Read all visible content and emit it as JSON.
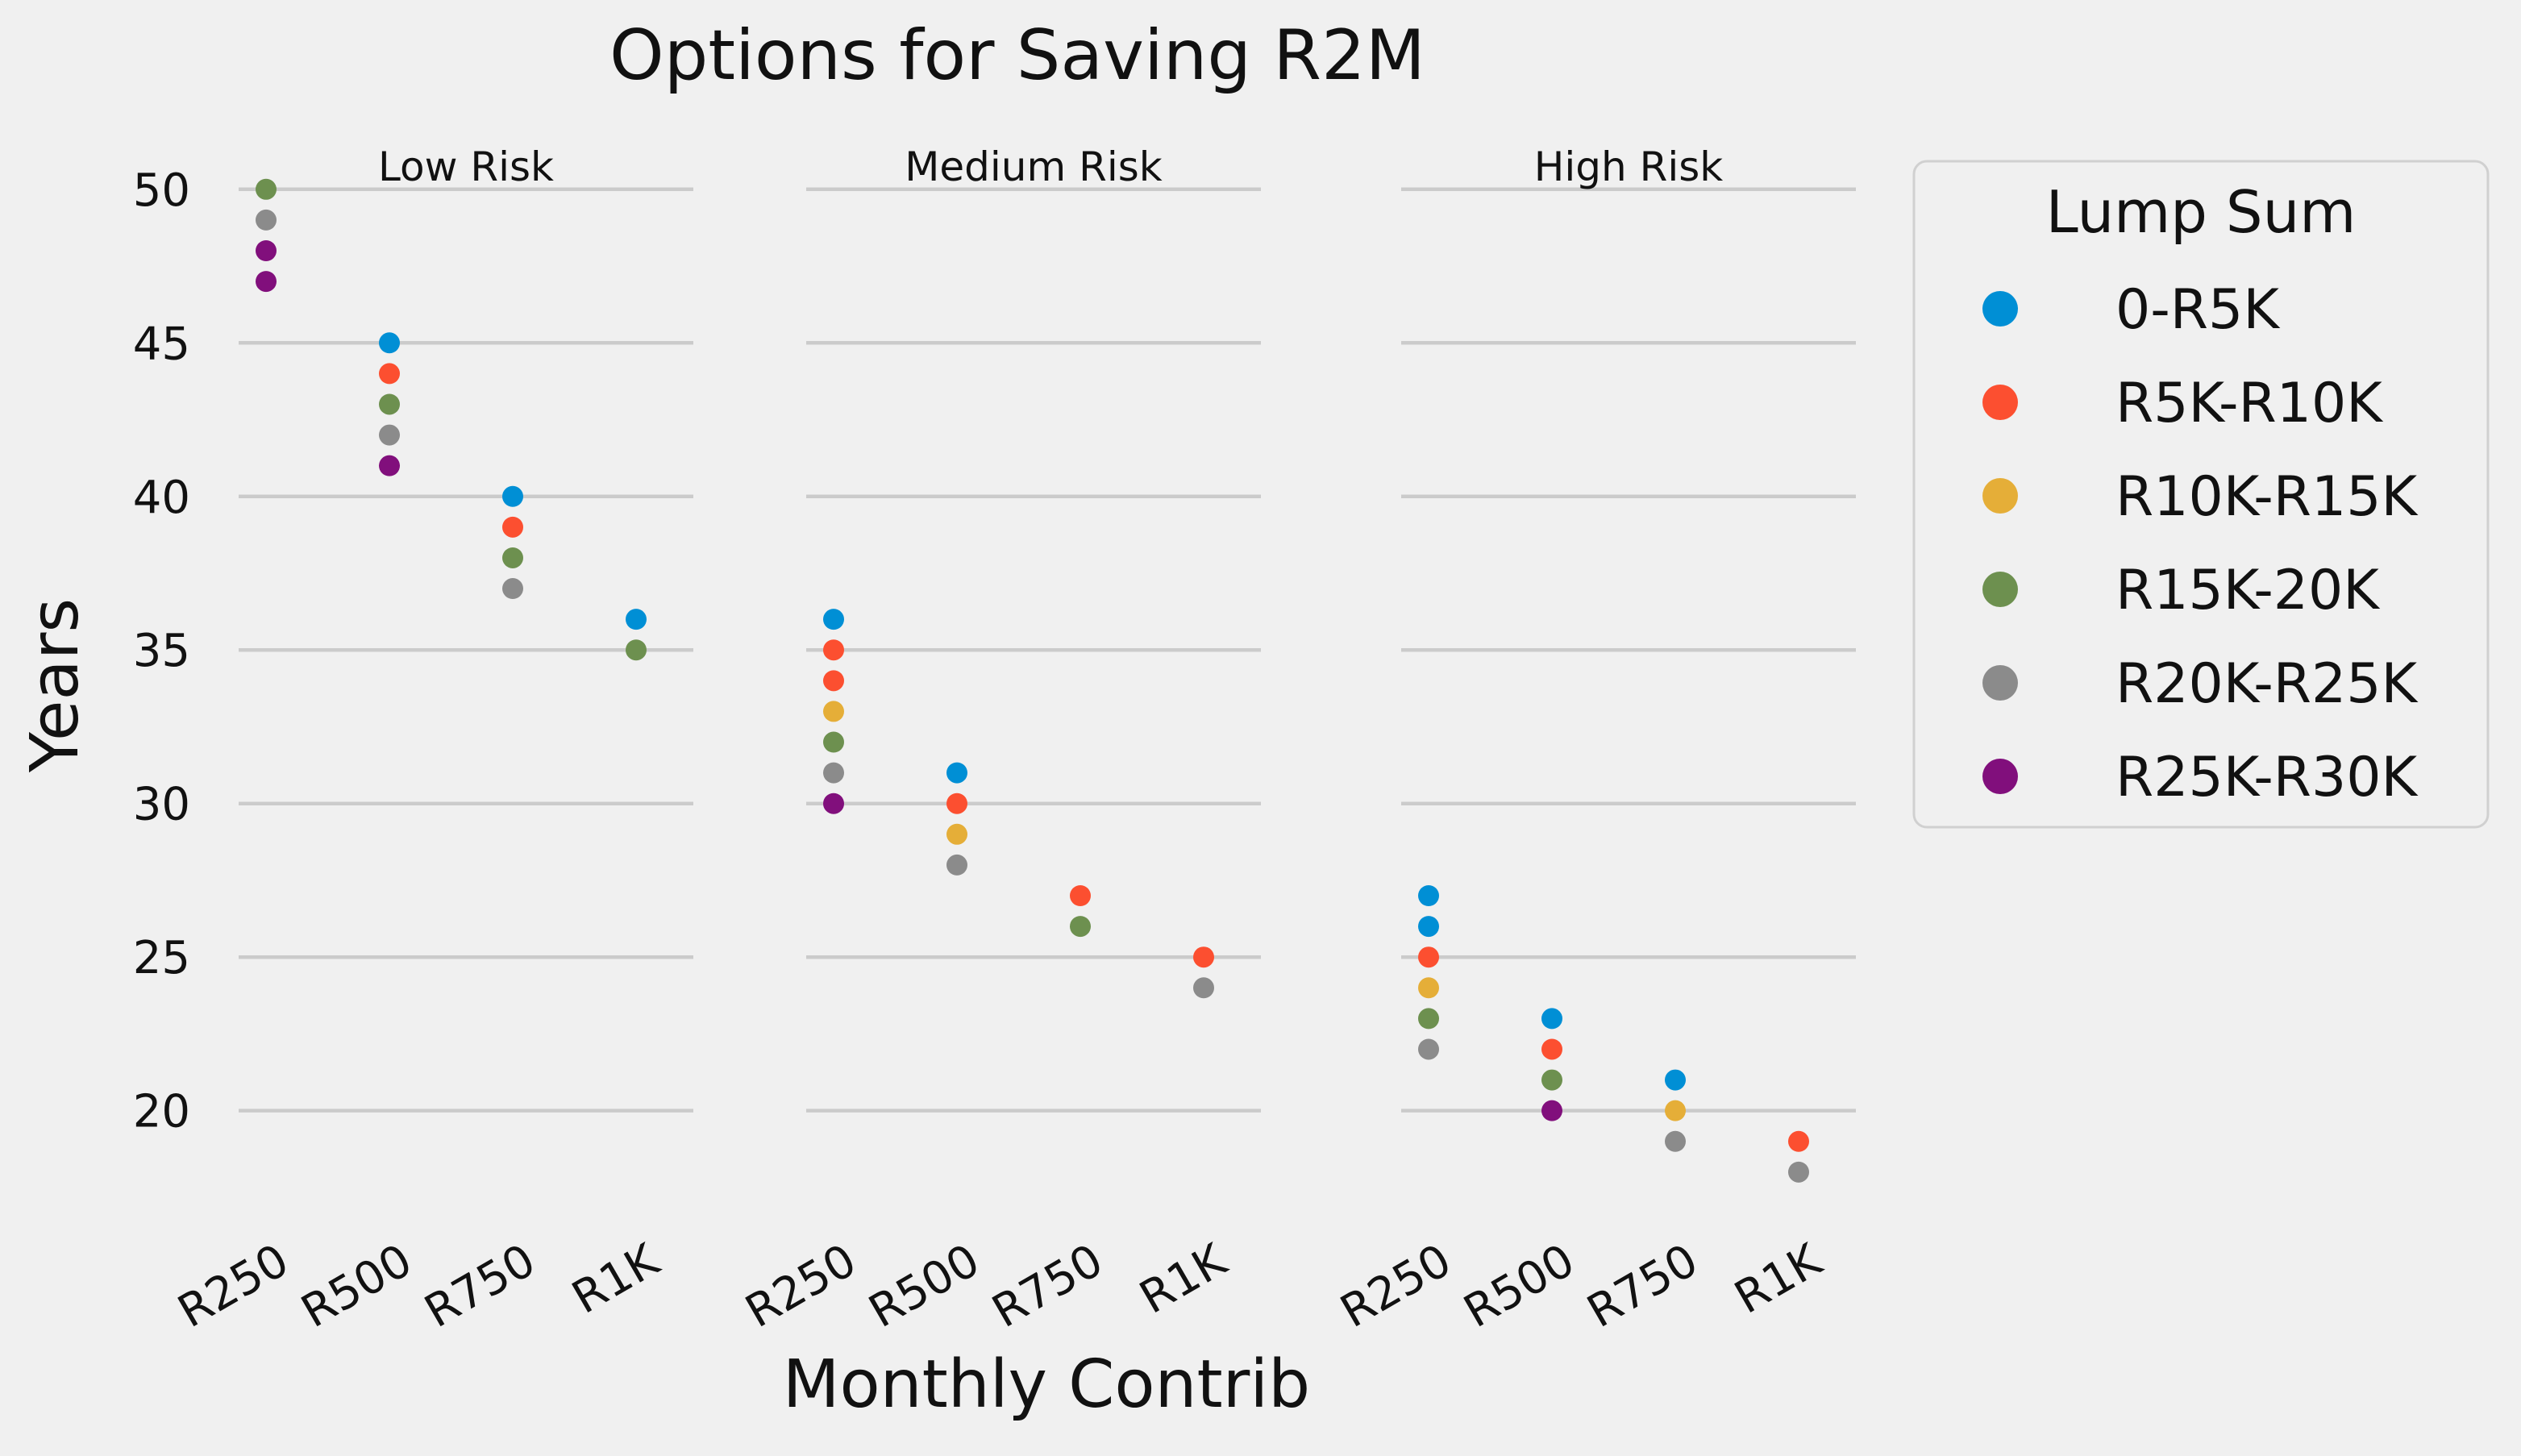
{
  "chart_data": {
    "type": "scatter",
    "title": "Options for Saving R2M",
    "xlabel": "Monthly Contrib",
    "ylabel": "Years",
    "categories": [
      "R250",
      "R500",
      "R750",
      "R1K"
    ],
    "ylim": [
      16.5,
      52.2
    ],
    "yticks": [
      20,
      25,
      30,
      35,
      40,
      45,
      50
    ],
    "grid": "horizontal",
    "legend": {
      "title": "Lump Sum",
      "placement": "right"
    },
    "series": [
      {
        "name": "0-R5K",
        "color": "#008fd5"
      },
      {
        "name": "R5K-R10K",
        "color": "#fc4f30"
      },
      {
        "name": "R10K-R15K",
        "color": "#e5ae38"
      },
      {
        "name": "R15K-20K",
        "color": "#6d904f"
      },
      {
        "name": "R20K-R25K",
        "color": "#8b8b8b"
      },
      {
        "name": "R25K-R30K",
        "color": "#810f7c"
      }
    ],
    "panels": [
      {
        "title": "Low Risk",
        "points": [
          {
            "x": "R250",
            "y": 50,
            "series": "R15K-20K"
          },
          {
            "x": "R250",
            "y": 49,
            "series": "R20K-R25K"
          },
          {
            "x": "R250",
            "y": 48,
            "series": "R25K-R30K"
          },
          {
            "x": "R250",
            "y": 47,
            "series": "R25K-R30K"
          },
          {
            "x": "R500",
            "y": 45,
            "series": "0-R5K"
          },
          {
            "x": "R500",
            "y": 44,
            "series": "R5K-R10K"
          },
          {
            "x": "R500",
            "y": 43,
            "series": "R15K-20K"
          },
          {
            "x": "R500",
            "y": 42,
            "series": "R20K-R25K"
          },
          {
            "x": "R500",
            "y": 41,
            "series": "R25K-R30K"
          },
          {
            "x": "R750",
            "y": 40,
            "series": "0-R5K"
          },
          {
            "x": "R750",
            "y": 39,
            "series": "R5K-R10K"
          },
          {
            "x": "R750",
            "y": 38,
            "series": "R15K-20K"
          },
          {
            "x": "R750",
            "y": 37,
            "series": "R20K-R25K"
          },
          {
            "x": "R1K",
            "y": 36,
            "series": "0-R5K"
          },
          {
            "x": "R1K",
            "y": 35,
            "series": "R15K-20K"
          }
        ]
      },
      {
        "title": "Medium Risk",
        "points": [
          {
            "x": "R250",
            "y": 36,
            "series": "0-R5K"
          },
          {
            "x": "R250",
            "y": 35,
            "series": "R5K-R10K"
          },
          {
            "x": "R250",
            "y": 34,
            "series": "R5K-R10K"
          },
          {
            "x": "R250",
            "y": 33,
            "series": "R10K-R15K"
          },
          {
            "x": "R250",
            "y": 32,
            "series": "R15K-20K"
          },
          {
            "x": "R250",
            "y": 31,
            "series": "R20K-R25K"
          },
          {
            "x": "R250",
            "y": 30,
            "series": "R25K-R30K"
          },
          {
            "x": "R500",
            "y": 31,
            "series": "0-R5K"
          },
          {
            "x": "R500",
            "y": 30,
            "series": "R5K-R10K"
          },
          {
            "x": "R500",
            "y": 29,
            "series": "R10K-R15K"
          },
          {
            "x": "R500",
            "y": 28,
            "series": "R20K-R25K"
          },
          {
            "x": "R750",
            "y": 27,
            "series": "R5K-R10K"
          },
          {
            "x": "R750",
            "y": 26,
            "series": "R15K-20K"
          },
          {
            "x": "R1K",
            "y": 25,
            "series": "R5K-R10K"
          },
          {
            "x": "R1K",
            "y": 24,
            "series": "R20K-R25K"
          }
        ]
      },
      {
        "title": "High Risk",
        "points": [
          {
            "x": "R250",
            "y": 27,
            "series": "0-R5K"
          },
          {
            "x": "R250",
            "y": 26,
            "series": "0-R5K"
          },
          {
            "x": "R250",
            "y": 25,
            "series": "R5K-R10K"
          },
          {
            "x": "R250",
            "y": 24,
            "series": "R10K-R15K"
          },
          {
            "x": "R250",
            "y": 23,
            "series": "R15K-20K"
          },
          {
            "x": "R250",
            "y": 22,
            "series": "R20K-R25K"
          },
          {
            "x": "R500",
            "y": 23,
            "series": "0-R5K"
          },
          {
            "x": "R500",
            "y": 22,
            "series": "R5K-R10K"
          },
          {
            "x": "R500",
            "y": 21,
            "series": "R15K-20K"
          },
          {
            "x": "R500",
            "y": 20,
            "series": "R25K-R30K"
          },
          {
            "x": "R750",
            "y": 21,
            "series": "0-R5K"
          },
          {
            "x": "R750",
            "y": 20,
            "series": "R10K-R15K"
          },
          {
            "x": "R750",
            "y": 19,
            "series": "R20K-R25K"
          },
          {
            "x": "R1K",
            "y": 19,
            "series": "R5K-R10K"
          },
          {
            "x": "R1K",
            "y": 18,
            "series": "R20K-R25K"
          }
        ]
      }
    ]
  }
}
